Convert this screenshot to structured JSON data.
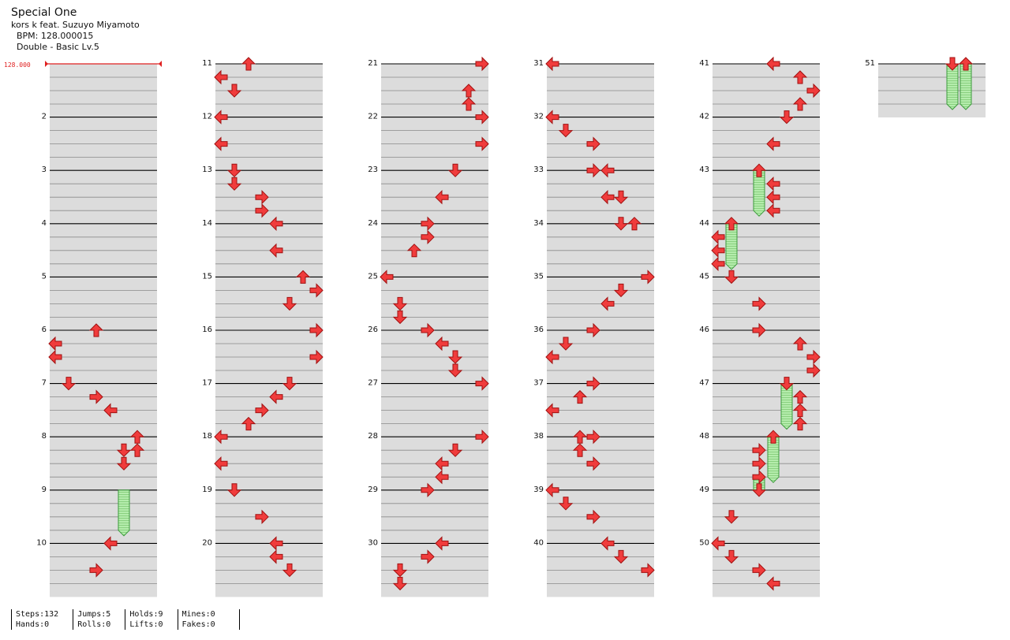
{
  "song": {
    "title": "Special One",
    "artist": "kors k feat. Suzuyo Miyamoto",
    "bpm_line": "BPM: 128.000015",
    "difficulty_line": "Double - Basic Lv.5"
  },
  "bpm_marker": "128.000",
  "measure_labels": [
    "2",
    "3",
    "4",
    "5",
    "6",
    "7",
    "8",
    "9",
    "10",
    "11",
    "12",
    "13",
    "14",
    "15",
    "16",
    "17",
    "18",
    "19",
    "20",
    "21",
    "22",
    "23",
    "24",
    "25",
    "26",
    "27",
    "28",
    "29",
    "30",
    "31",
    "32",
    "33",
    "34",
    "35",
    "36",
    "37",
    "38",
    "39",
    "40",
    "41",
    "42",
    "43",
    "44",
    "45",
    "46",
    "47",
    "48",
    "49",
    "50",
    "51"
  ],
  "stats": [
    {
      "a": "Steps:132",
      "b": "Hands:0"
    },
    {
      "a": "Jumps:5",
      "b": "Rolls:0"
    },
    {
      "a": "Holds:9",
      "b": "Lifts:0"
    },
    {
      "a": "Mines:0",
      "b": "Fakes:0"
    }
  ],
  "colors": {
    "arrow_fill": "#f03c3c",
    "arrow_stroke": "#a01010",
    "hold_fill": "#a8e6a0",
    "hold_stroke": "#3c9a3c",
    "band": "#dcdcdc",
    "bpm_marker": "#e02020"
  },
  "icons": [
    "arrow-left-icon",
    "arrow-down-icon",
    "arrow-up-icon",
    "arrow-right-icon",
    "hold-body-icon"
  ],
  "notes": [
    {
      "m": 1,
      "b": 0,
      "l": "-"
    },
    {
      "m": 6,
      "b": 0,
      "l": "U"
    },
    {
      "m": 6,
      "b": 1,
      "l": "L"
    },
    {
      "m": 6,
      "b": 2,
      "l": "L"
    },
    {
      "m": 7,
      "b": 0,
      "l": "D"
    },
    {
      "m": 7,
      "b": 1,
      "l": "R"
    },
    {
      "m": 7,
      "b": 2,
      "l": "L"
    },
    {
      "m": 8,
      "b": 0,
      "l": "U2"
    },
    {
      "m": 8,
      "b": 1,
      "l": "D2"
    },
    {
      "m": 8,
      "b": 1,
      "l": "U2b"
    },
    {
      "m": 8,
      "b": 2,
      "l": "D2"
    },
    {
      "m": 9,
      "b": 0,
      "l": "HOLD"
    },
    {
      "m": 10,
      "b": 0,
      "l": "L"
    },
    {
      "m": 10,
      "b": 2,
      "l": "R"
    }
  ]
}
